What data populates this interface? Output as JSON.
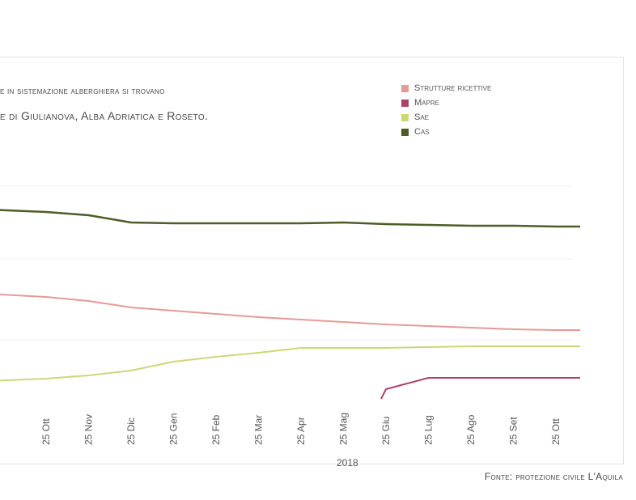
{
  "chart_data": {
    "type": "line",
    "caption_line1": "e in sistemazione alberghiera si trovano",
    "caption_line2": "e di Giulianova, Alba Adriatica e Roseto.",
    "x": [
      "25 Ott",
      "25 Nov",
      "25 Dic",
      "25 Gen",
      "25 Feb",
      "25 Mar",
      "25 Apr",
      "25 Mag",
      "25 Giu",
      "25 Lug",
      "25 Ago",
      "25 Set",
      "25 Ott"
    ],
    "year_label": "2018",
    "series": [
      {
        "name": "Strutture ricettive",
        "color": "#e59a98",
        "values": [
          367,
          372,
          380,
          384,
          388,
          392,
          395,
          398,
          401,
          403,
          405,
          407,
          408
        ]
      },
      {
        "name": "Mapre",
        "color": "#b0406a",
        "values": [
          null,
          null,
          null,
          null,
          null,
          null,
          null,
          null,
          481,
          467,
          467,
          467,
          467
        ]
      },
      {
        "name": "Sae",
        "color": "#cfd67a",
        "values": [
          468,
          464,
          458,
          447,
          441,
          436,
          430,
          430,
          430,
          429,
          428,
          428,
          428
        ]
      },
      {
        "name": "Cas",
        "color": "#4e5c27",
        "values": [
          262,
          266,
          275,
          276,
          276,
          276,
          276,
          275,
          277,
          278,
          279,
          279,
          280
        ]
      }
    ],
    "grid": true,
    "legend_position": "top-right"
  },
  "source": "Fonte: protezione civile L'Aquila"
}
